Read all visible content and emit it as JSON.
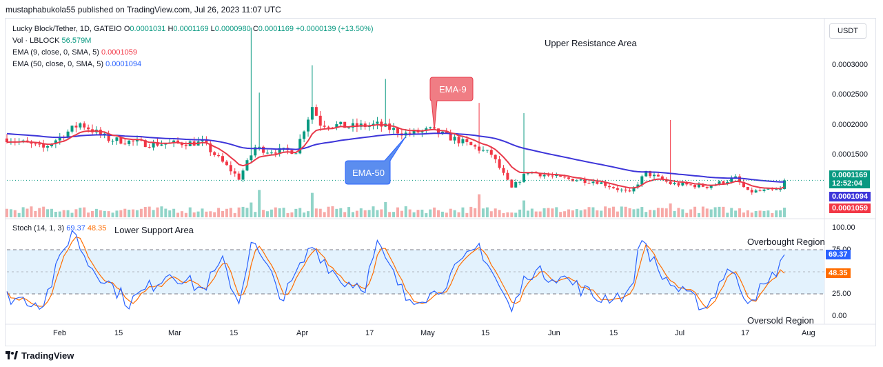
{
  "header": {
    "publisher": "mustaphabukola55 published on TradingView.com, Jul 26, 2023 11:07 UTC"
  },
  "legend": {
    "symbol": "Lucky Block/Tether, 1D, GATEIO",
    "open_label": "O",
    "open": "0.0001031",
    "high_label": "H",
    "high": "0.0001169",
    "low_label": "L",
    "low": "0.0000980",
    "close_label": "C",
    "close": "0.0001169",
    "change": "+0.0000139 (+13.50%)",
    "vol_label": "Vol · LBLOCK",
    "vol": "56.579M",
    "ema9_label": "EMA (9, close, 0, SMA, 5)",
    "ema9": "0.0001059",
    "ema50_label": "EMA (50, close, 0, SMA, 5)",
    "ema50": "0.0001094",
    "stoch_label": "Stoch (14, 1, 3)",
    "stoch_k": "69.37",
    "stoch_d": "48.35"
  },
  "toolbar": {
    "currency_button": "USDT"
  },
  "annotations": {
    "upper": "Upper Resistance Area",
    "lower": "Lower Support Area",
    "overbought": "Overbought Region",
    "oversold": "Oversold Region",
    "ema9_callout": "EMA-9",
    "ema50_callout": "EMA-50"
  },
  "badges": {
    "price": "0.0001169",
    "countdown": "12:52:04",
    "ema50": "0.0001094",
    "ema9": "0.0001059",
    "stoch_k": "69.37",
    "stoch_d": "48.35"
  },
  "price_axis": [
    "0.0003000",
    "0.0002500",
    "0.0002000",
    "0.0001500"
  ],
  "stoch_axis": [
    "100.00",
    "75.00",
    "25.00",
    "0.00"
  ],
  "time_axis": [
    "Feb",
    "15",
    "Mar",
    "15",
    "Apr",
    "17",
    "May",
    "15",
    "Jun",
    "15",
    "Jul",
    "17",
    "Aug"
  ],
  "footer": {
    "brand": "TradingView"
  },
  "colors": {
    "up": "#089981",
    "down": "#f23645",
    "ema9": "#e8394a",
    "ema50": "#3d35d9",
    "stoch_k": "#2962ff",
    "stoch_d": "#ff6d00",
    "band": "#e3f2fd",
    "vol_up": "#90d4c8",
    "vol_down": "#f7a9a7"
  },
  "chart_data": [
    {
      "type": "candlestick",
      "title": "Lucky Block/Tether, 1D, GATEIO",
      "ylim": [
        7.8e-05,
        0.00034
      ],
      "x_range": [
        "2023-01-16",
        "2023-07-26"
      ],
      "anchors": [
        {
          "date": "2023-01-16",
          "close": 0.000178
        },
        {
          "date": "2023-01-25",
          "close": 0.000164
        },
        {
          "date": "2023-02-03",
          "close": 0.0002
        },
        {
          "date": "2023-02-10",
          "close": 0.000177
        },
        {
          "date": "2023-02-20",
          "close": 0.00017
        },
        {
          "date": "2023-03-05",
          "close": 0.000172
        },
        {
          "date": "2023-03-14",
          "close": 0.00012
        },
        {
          "date": "2023-03-18",
          "close": 0.000165
        },
        {
          "date": "2023-03-21",
          "close": 0.00016
        },
        {
          "date": "2023-03-28",
          "close": 0.00016
        },
        {
          "date": "2023-04-01",
          "close": 0.000225
        },
        {
          "date": "2023-04-03",
          "close": 0.0002
        },
        {
          "date": "2023-04-10",
          "close": 0.000195
        },
        {
          "date": "2023-04-17",
          "close": 0.000198
        },
        {
          "date": "2023-04-24",
          "close": 0.000185
        },
        {
          "date": "2023-04-30",
          "close": 0.00019
        },
        {
          "date": "2023-05-07",
          "close": 0.000175
        },
        {
          "date": "2023-05-15",
          "close": 0.000155
        },
        {
          "date": "2023-05-20",
          "close": 0.000105
        },
        {
          "date": "2023-05-24",
          "close": 0.00013
        },
        {
          "date": "2023-06-01",
          "close": 0.00012
        },
        {
          "date": "2023-06-10",
          "close": 0.000115
        },
        {
          "date": "2023-06-18",
          "close": 9.8e-05
        },
        {
          "date": "2023-06-22",
          "close": 0.000128
        },
        {
          "date": "2023-06-28",
          "close": 0.000112
        },
        {
          "date": "2023-07-07",
          "close": 0.000108
        },
        {
          "date": "2023-07-14",
          "close": 0.00012
        },
        {
          "date": "2023-07-17",
          "close": 0.0001
        },
        {
          "date": "2023-07-25",
          "close": 0.000103
        },
        {
          "date": "2023-07-26",
          "close": 0.0001169
        }
      ],
      "spikes": [
        {
          "date": "2023-03-17",
          "high": 0.00034
        },
        {
          "date": "2023-03-19",
          "high": 0.000245
        },
        {
          "date": "2023-04-01",
          "high": 0.000285
        },
        {
          "date": "2023-04-19",
          "high": 0.000265
        },
        {
          "date": "2023-05-12",
          "high": 0.00023
        },
        {
          "date": "2023-05-23",
          "high": 0.000215
        },
        {
          "date": "2023-06-28",
          "high": 0.000205
        }
      ],
      "ema9_last": 0.0001059,
      "ema50_last": 0.0001094,
      "last_close": 0.0001169
    },
    {
      "type": "line",
      "title": "Stoch (14, 1, 3)",
      "ylim": [
        0,
        100
      ],
      "bands": [
        25,
        75
      ],
      "anchors_k": [
        {
          "date": "2023-01-16",
          "value": 22
        },
        {
          "date": "2023-01-25",
          "value": 15
        },
        {
          "date": "2023-02-01",
          "value": 98
        },
        {
          "date": "2023-02-05",
          "value": 60
        },
        {
          "date": "2023-02-15",
          "value": 15
        },
        {
          "date": "2023-02-25",
          "value": 50
        },
        {
          "date": "2023-03-05",
          "value": 30
        },
        {
          "date": "2023-03-10",
          "value": 60
        },
        {
          "date": "2023-03-14",
          "value": 15
        },
        {
          "date": "2023-03-17",
          "value": 85
        },
        {
          "date": "2023-03-25",
          "value": 20
        },
        {
          "date": "2023-04-01",
          "value": 80
        },
        {
          "date": "2023-04-08",
          "value": 40
        },
        {
          "date": "2023-04-14",
          "value": 35
        },
        {
          "date": "2023-04-17",
          "value": 80
        },
        {
          "date": "2023-04-24",
          "value": 20
        },
        {
          "date": "2023-05-01",
          "value": 25
        },
        {
          "date": "2023-05-12",
          "value": 80
        },
        {
          "date": "2023-05-20",
          "value": 5
        },
        {
          "date": "2023-05-24",
          "value": 50
        },
        {
          "date": "2023-06-01",
          "value": 45
        },
        {
          "date": "2023-06-10",
          "value": 20
        },
        {
          "date": "2023-06-18",
          "value": 25
        },
        {
          "date": "2023-06-21",
          "value": 90
        },
        {
          "date": "2023-06-25",
          "value": 50
        },
        {
          "date": "2023-07-01",
          "value": 25
        },
        {
          "date": "2023-07-07",
          "value": 10
        },
        {
          "date": "2023-07-12",
          "value": 55
        },
        {
          "date": "2023-07-17",
          "value": 20
        },
        {
          "date": "2023-07-22",
          "value": 35
        },
        {
          "date": "2023-07-26",
          "value": 69.37
        }
      ],
      "last_k": 69.37,
      "last_d": 48.35
    }
  ]
}
